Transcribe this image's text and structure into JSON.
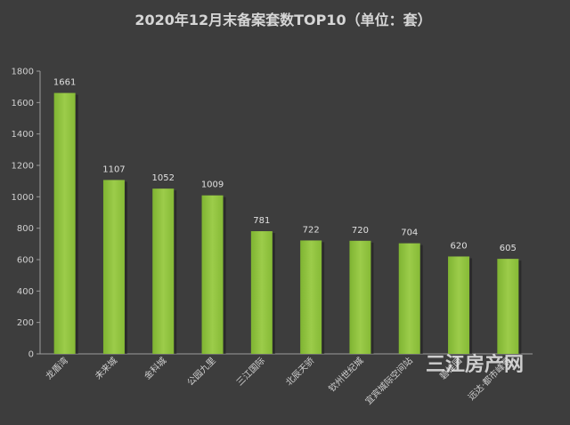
{
  "chart_data": {
    "type": "bar",
    "title": "2020年12月末备案套数TOP10（单位：套）",
    "categories": [
      "龙盾湾",
      "未来城",
      "金科城",
      "公园九里",
      "三江国际",
      "北辰天骄",
      "钦州世纪城",
      "宜宾城际空间站",
      "碧桂园",
      "远达·都市峰景"
    ],
    "values": [
      1661,
      1107,
      1052,
      1009,
      781,
      722,
      720,
      704,
      620,
      605
    ],
    "ylim": [
      0,
      1800
    ],
    "yticks": [
      0,
      200,
      400,
      600,
      800,
      1000,
      1200,
      1400,
      1600,
      1800
    ],
    "grid": false,
    "legend": "none",
    "bar_color": "#8dc23c",
    "background": "#3d3d3d"
  },
  "watermark": "三江房产网"
}
